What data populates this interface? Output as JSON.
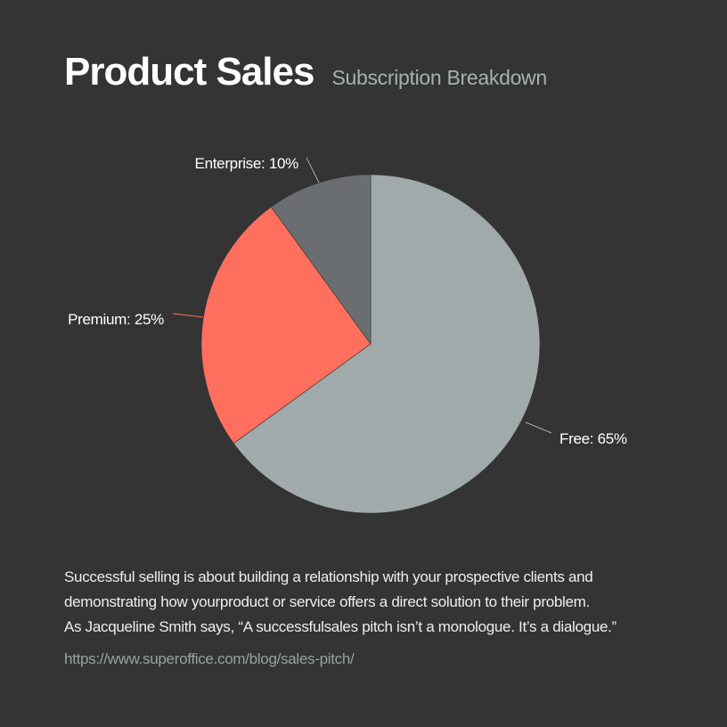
{
  "header": {
    "title": "Product Sales",
    "subtitle": "Subscription Breakdown"
  },
  "chart_data": {
    "type": "pie",
    "title": "Product Sales",
    "subtitle": "Subscription Breakdown",
    "slices": [
      {
        "name": "Free",
        "value": 65,
        "label": "Free: 65%",
        "color": "#a0aaaa"
      },
      {
        "name": "Premium",
        "value": 25,
        "label": "Premium: 25%",
        "color": "#fe6f5e"
      },
      {
        "name": "Enterprise",
        "value": 10,
        "label": "Enterprise: 10%",
        "color": "#6b6e70"
      }
    ],
    "start_angle_deg": 0,
    "direction": "clockwise",
    "legend": "none",
    "colors": {
      "background": "#343434",
      "leader_line": "#aaaaaa"
    }
  },
  "description": {
    "line1": "Successful selling is about building a relationship with your prospective clients and",
    "line2": "demonstrating how yourproduct or service offers a direct solution to their problem.",
    "line3": "As Jacqueline Smith says, “A successfulsales pitch isn’t a monologue. It’s a dialogue.”"
  },
  "source": {
    "url": "https://www.superoffice.com/blog/sales-pitch/"
  }
}
